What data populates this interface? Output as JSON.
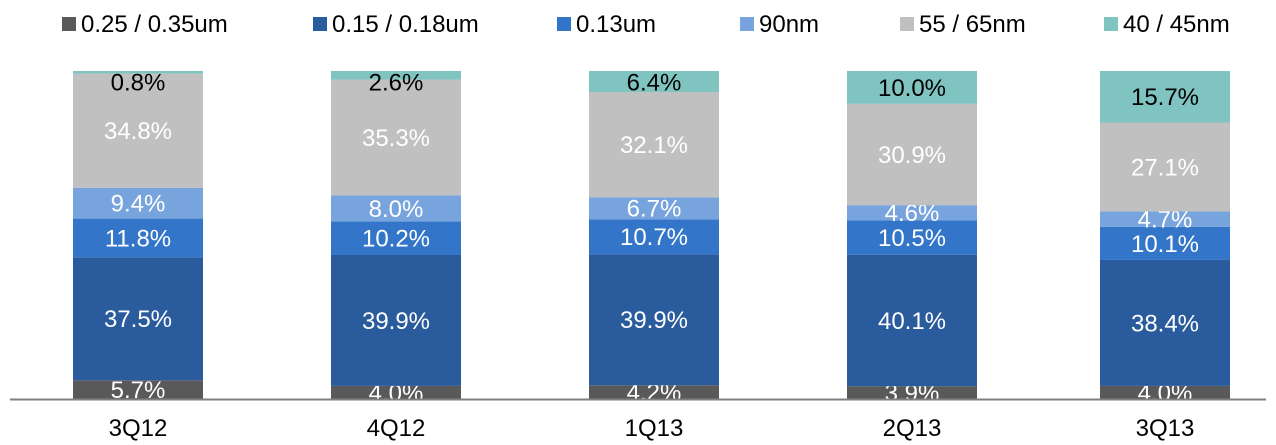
{
  "chart_data": {
    "type": "bar",
    "stacked": true,
    "percent_stacked": true,
    "categories": [
      "3Q12",
      "4Q12",
      "1Q13",
      "2Q13",
      "3Q13"
    ],
    "series": [
      {
        "name": "0.25 / 0.35um",
        "color": "#595959",
        "label_color": "#ffffff",
        "values": [
          5.7,
          4.0,
          4.2,
          3.9,
          4.0
        ]
      },
      {
        "name": "0.15 / 0.18um",
        "color": "#2a5b9c",
        "label_color": "#ffffff",
        "values": [
          37.5,
          39.9,
          39.9,
          40.1,
          38.4
        ]
      },
      {
        "name": "0.13um",
        "color": "#3375c8",
        "label_color": "#ffffff",
        "values": [
          11.8,
          10.2,
          10.7,
          10.5,
          10.1
        ]
      },
      {
        "name": "90nm",
        "color": "#78a4dd",
        "label_color": "#ffffff",
        "values": [
          9.4,
          8.0,
          6.7,
          4.6,
          4.7
        ]
      },
      {
        "name": "55 / 65nm",
        "color": "#c0c0c0",
        "label_color": "#ffffff",
        "values": [
          34.8,
          35.3,
          32.1,
          30.9,
          27.1
        ]
      },
      {
        "name": "40 / 45nm",
        "color": "#7fc4c1",
        "label_color": "#000000",
        "values": [
          0.8,
          2.6,
          6.4,
          10.0,
          15.7
        ]
      }
    ],
    "data_labels": [
      [
        "5.7%",
        "4.0%",
        "4.2%",
        "3.9%",
        "4.0%"
      ],
      [
        "37.5%",
        "39.9%",
        "39.9%",
        "40.1%",
        "38.4%"
      ],
      [
        "11.8%",
        "10.2%",
        "10.7%",
        "10.5%",
        "10.1%"
      ],
      [
        "9.4%",
        "8.0%",
        "6.7%",
        "4.6%",
        "4.7%"
      ],
      [
        "34.8%",
        "35.3%",
        "32.1%",
        "30.9%",
        "27.1%"
      ],
      [
        "0.8%",
        "2.6%",
        "6.4%",
        "10.0%",
        "15.7%"
      ]
    ],
    "ylim": [
      0,
      100
    ],
    "grid": false,
    "legend_position": "top",
    "axis_color": "#808080"
  }
}
